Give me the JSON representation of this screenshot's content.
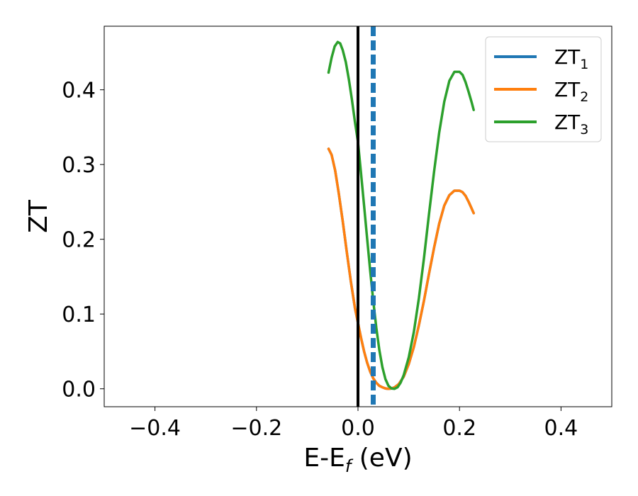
{
  "chart_data": {
    "type": "line",
    "title": "",
    "xlabel": "E-E",
    "xlabel_sub": "f",
    "xlabel_unit": " (eV)",
    "ylabel": "ZT",
    "xlim": [
      -0.5,
      0.5
    ],
    "ylim": [
      -0.024,
      0.485
    ],
    "xticks": [
      -0.4,
      -0.2,
      0.0,
      0.2,
      0.4
    ],
    "xtick_labels": [
      "−0.4",
      "−0.2",
      "0.0",
      "0.2",
      "0.4"
    ],
    "yticks": [
      0.0,
      0.1,
      0.2,
      0.3,
      0.4
    ],
    "ytick_labels": [
      "0.0",
      "0.1",
      "0.2",
      "0.3",
      "0.4"
    ],
    "grid": false,
    "legend_position": "upper-right",
    "series": [
      {
        "name": "ZT",
        "sub": "1",
        "color": "#1f77b4",
        "x": [
          -0.058,
          -0.052,
          -0.045,
          -0.038,
          -0.03,
          -0.022,
          -0.014,
          -0.006,
          0.0,
          0.006,
          0.012,
          0.018,
          0.024,
          0.03,
          0.036,
          0.042,
          0.048,
          0.054,
          0.06,
          0.066,
          0.072,
          0.08,
          0.09,
          0.1,
          0.11,
          0.12,
          0.13,
          0.14,
          0.15,
          0.16,
          0.17,
          0.18,
          0.19,
          0.2,
          0.206,
          0.212,
          0.218,
          0.224,
          0.228
        ],
        "y": [
          0.321,
          0.313,
          0.292,
          0.262,
          0.224,
          0.183,
          0.143,
          0.108,
          0.088,
          0.068,
          0.05,
          0.035,
          0.023,
          0.014,
          0.008,
          0.004,
          0.002,
          0.0005,
          0.0,
          0.0005,
          0.002,
          0.006,
          0.016,
          0.033,
          0.056,
          0.085,
          0.118,
          0.154,
          0.189,
          0.221,
          0.245,
          0.259,
          0.265,
          0.265,
          0.263,
          0.258,
          0.25,
          0.241,
          0.235
        ]
      },
      {
        "name": "ZT",
        "sub": "2",
        "color": "#ff7f0e",
        "x": [
          -0.058,
          -0.052,
          -0.045,
          -0.038,
          -0.03,
          -0.022,
          -0.014,
          -0.006,
          0.0,
          0.006,
          0.012,
          0.018,
          0.024,
          0.03,
          0.036,
          0.042,
          0.048,
          0.054,
          0.06,
          0.066,
          0.072,
          0.08,
          0.09,
          0.1,
          0.11,
          0.12,
          0.13,
          0.14,
          0.15,
          0.16,
          0.17,
          0.18,
          0.19,
          0.2,
          0.206,
          0.212,
          0.218,
          0.224,
          0.228
        ],
        "y": [
          0.321,
          0.313,
          0.292,
          0.262,
          0.224,
          0.183,
          0.143,
          0.108,
          0.088,
          0.068,
          0.05,
          0.035,
          0.023,
          0.014,
          0.008,
          0.004,
          0.002,
          0.0005,
          0.0,
          0.0005,
          0.002,
          0.006,
          0.016,
          0.033,
          0.056,
          0.085,
          0.118,
          0.154,
          0.189,
          0.221,
          0.245,
          0.259,
          0.265,
          0.265,
          0.263,
          0.258,
          0.25,
          0.241,
          0.235
        ]
      },
      {
        "name": "ZT",
        "sub": "3",
        "color": "#2ca02c",
        "x": [
          -0.058,
          -0.052,
          -0.046,
          -0.04,
          -0.035,
          -0.03,
          -0.024,
          -0.018,
          -0.012,
          -0.006,
          0.0,
          0.006,
          0.012,
          0.018,
          0.024,
          0.03,
          0.036,
          0.042,
          0.048,
          0.054,
          0.06,
          0.066,
          0.072,
          0.078,
          0.084,
          0.09,
          0.1,
          0.11,
          0.12,
          0.13,
          0.14,
          0.15,
          0.16,
          0.17,
          0.18,
          0.19,
          0.2,
          0.206,
          0.212,
          0.218,
          0.224,
          0.228
        ],
        "y": [
          0.423,
          0.443,
          0.458,
          0.464,
          0.462,
          0.453,
          0.437,
          0.414,
          0.387,
          0.357,
          0.33,
          0.288,
          0.245,
          0.201,
          0.158,
          0.118,
          0.082,
          0.052,
          0.029,
          0.013,
          0.004,
          0.0005,
          0.0,
          0.002,
          0.008,
          0.018,
          0.042,
          0.076,
          0.121,
          0.175,
          0.234,
          0.291,
          0.343,
          0.384,
          0.412,
          0.424,
          0.424,
          0.42,
          0.41,
          0.397,
          0.383,
          0.373
        ]
      }
    ],
    "vlines": [
      {
        "x": 0.0,
        "color": "#000000",
        "style": "solid"
      },
      {
        "x": 0.03,
        "color": "#1f77b4",
        "style": "dashed"
      }
    ]
  }
}
